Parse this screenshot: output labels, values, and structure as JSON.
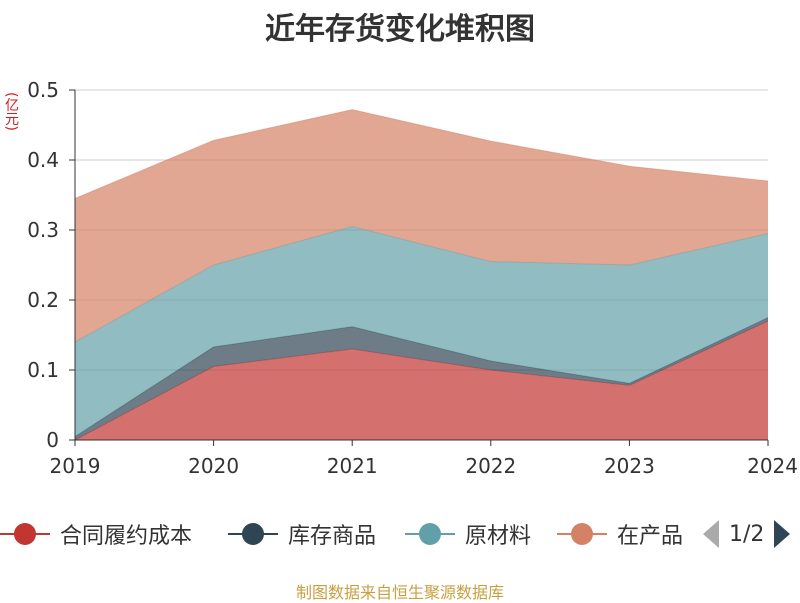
{
  "chart_data": {
    "type": "area",
    "stacked": true,
    "title": "近年存货变化堆积图",
    "unit_label": "(亿元)",
    "x": [
      "2019",
      "2020",
      "2021",
      "2022",
      "2023",
      "2024"
    ],
    "yticks": [
      "0",
      "0.1",
      "0.2",
      "0.3",
      "0.4",
      "0.5"
    ],
    "ylim": [
      0,
      0.5
    ],
    "grid": true,
    "series": [
      {
        "name": "合同履约成本",
        "color": "#c23531",
        "values": [
          0.0,
          0.105,
          0.13,
          0.1,
          0.078,
          0.17
        ]
      },
      {
        "name": "库存商品",
        "color": "#2f4554",
        "values": [
          0.005,
          0.028,
          0.032,
          0.013,
          0.003,
          0.005
        ]
      },
      {
        "name": "原材料",
        "color": "#61a0a8",
        "values": [
          0.135,
          0.117,
          0.143,
          0.142,
          0.169,
          0.12
        ]
      },
      {
        "name": "在产品",
        "color": "#d48265",
        "values": [
          0.205,
          0.178,
          0.167,
          0.172,
          0.141,
          0.075
        ]
      }
    ],
    "legend_position": "bottom"
  },
  "legend": {
    "page": "1/2"
  },
  "source_text": "制图数据来自恒生聚源数据库"
}
